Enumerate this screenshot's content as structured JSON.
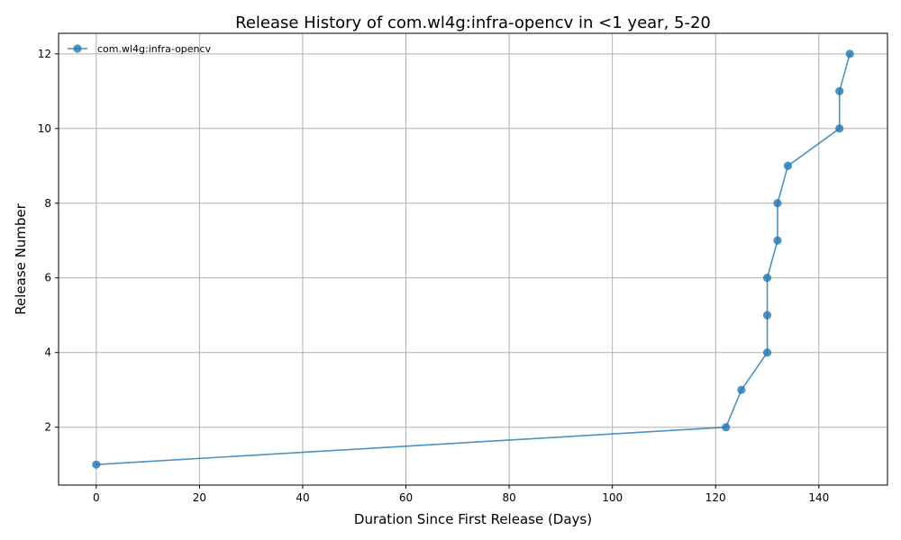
{
  "chart_data": {
    "type": "line",
    "title": "Release History of com.wl4g:infra-opencv in <1 year, 5-20",
    "xlabel": "Duration Since First Release (Days)",
    "ylabel": "Release Number",
    "xlim": [
      -7.3,
      153.3
    ],
    "ylim": [
      0.45,
      12.55
    ],
    "xticks": [
      0,
      20,
      40,
      60,
      80,
      100,
      120,
      140
    ],
    "yticks": [
      2,
      4,
      6,
      8,
      10,
      12
    ],
    "grid": true,
    "legend_position": "top-left",
    "series": [
      {
        "name": "com.wl4g:infra-opencv",
        "color": "#1f77b4",
        "marker": "circle",
        "x": [
          0,
          122,
          125,
          130,
          130,
          130,
          132,
          132,
          134,
          144,
          144,
          146
        ],
        "y": [
          1,
          2,
          3,
          4,
          5,
          6,
          7,
          8,
          9,
          10,
          11,
          12
        ]
      }
    ]
  }
}
